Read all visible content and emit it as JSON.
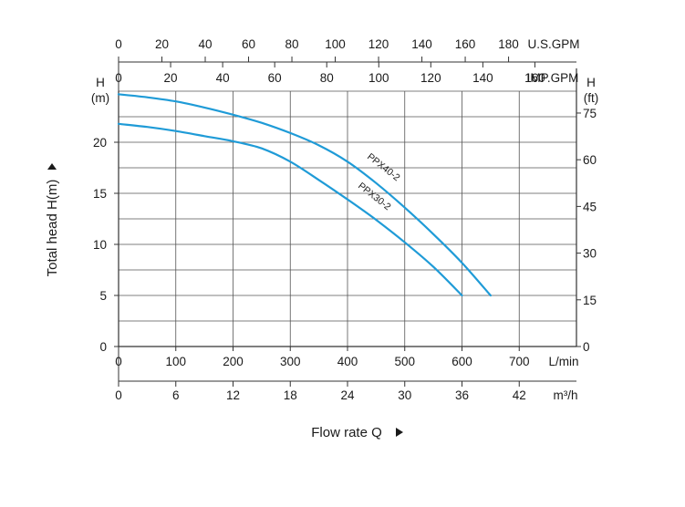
{
  "chart_data": {
    "type": "line",
    "title": "",
    "xlabel": "Flow rate  Q",
    "ylabel": "Total  head H(m)",
    "grid": true,
    "xlim": [
      0,
      800
    ],
    "ylim": [
      0,
      25
    ],
    "x_ticks": [
      "0",
      "100",
      "200",
      "300",
      "400",
      "500",
      "600",
      "700"
    ],
    "x_unit": "L/min",
    "y_ticks": [
      "0",
      "5",
      "10",
      "15",
      "20"
    ],
    "y_unit_top": "H",
    "y_unit_bottom": "(m)",
    "secondary_scales": {
      "usgpm": {
        "unit": "U.S.GPM",
        "ticks": [
          0,
          20,
          40,
          60,
          80,
          100,
          120,
          140,
          160,
          180
        ]
      },
      "impgpm": {
        "unit": "IMP.GPM",
        "ticks": [
          0,
          20,
          40,
          60,
          80,
          100,
          120,
          140,
          160
        ]
      },
      "m3h": {
        "unit": "m³/h",
        "ticks": [
          0,
          6,
          12,
          18,
          24,
          30,
          36,
          42
        ]
      },
      "ft": {
        "unit_top": "H",
        "unit_bottom": "(ft)",
        "ticks": [
          0,
          15,
          30,
          45,
          60,
          75
        ]
      }
    },
    "series": [
      {
        "name": "PPX40-2",
        "x": [
          0,
          50,
          100,
          150,
          200,
          250,
          300,
          350,
          400,
          450,
          500,
          550,
          600,
          650
        ],
        "y": [
          24.7,
          24.4,
          24.0,
          23.4,
          22.7,
          21.9,
          20.9,
          19.7,
          18.1,
          16.0,
          13.6,
          11.0,
          8.2,
          5.0
        ]
      },
      {
        "name": "PPX30-2",
        "x": [
          0,
          50,
          100,
          150,
          200,
          250,
          300,
          350,
          400,
          450,
          500,
          550,
          600
        ],
        "y": [
          21.8,
          21.5,
          21.1,
          20.6,
          20.1,
          19.4,
          18.1,
          16.3,
          14.4,
          12.4,
          10.2,
          7.8,
          5.0
        ]
      }
    ],
    "line_color": "#1f9bd7",
    "grid_color": "#555555"
  }
}
